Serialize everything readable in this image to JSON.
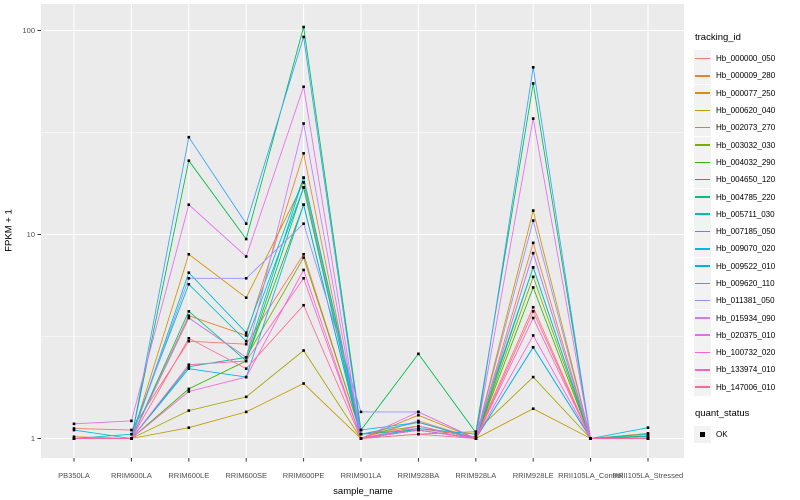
{
  "figure": {
    "background": "#FFFFFF",
    "panel_bg": "#EBEBEB",
    "grid_color": "#FFFFFF",
    "tick_text_color": "#4D4D4D",
    "tick_mark_color": "#333333"
  },
  "axes": {
    "x_title": "sample_name",
    "y_title": "FPKM + 1"
  },
  "legend": {
    "tracking_title": "tracking_id",
    "quant_title": "quant_status",
    "quant_ok_label": "OK"
  },
  "chart_data": {
    "type": "line",
    "title": "",
    "xlabel": "sample_name",
    "ylabel": "FPKM + 1",
    "y_scale": "log10",
    "ylim": [
      0.9,
      135
    ],
    "grid": true,
    "legend_position": "right",
    "point_color": "#000000",
    "yticks": [
      {
        "label": "1",
        "value": 1
      },
      {
        "label": "10",
        "value": 10
      },
      {
        "label": "100",
        "value": 100
      }
    ],
    "y_minor": [
      3.1623,
      31.623
    ],
    "categories": [
      "PB350LA",
      "RRIM600LA",
      "RRIM600LE",
      "RRIM600SE",
      "RRIM600PE",
      "RRIM901LA",
      "RRIM928BA",
      "RRIM928LA",
      "RRIM928LE",
      "RRII105LA_Control",
      "RRII105LA_Stressed"
    ],
    "series": [
      {
        "name": "Hb_000000_050",
        "color": "#F8766D",
        "values": [
          1.12,
          1.1,
          3.0,
          2.9,
          8.0,
          1.05,
          1.12,
          1.02,
          4.4,
          1.0,
          1.02
        ]
      },
      {
        "name": "Hb_000009_280",
        "color": "#EA8331",
        "values": [
          1.0,
          1.0,
          4.0,
          3.2,
          25.0,
          1.0,
          1.22,
          1.0,
          9.1,
          1.0,
          1.06
        ]
      },
      {
        "name": "Hb_000077_250",
        "color": "#D89000",
        "values": [
          1.02,
          1.0,
          8.0,
          4.9,
          18.0,
          1.0,
          1.3,
          1.0,
          13.1,
          1.0,
          1.02
        ]
      },
      {
        "name": "Hb_000620_040",
        "color": "#C09B00",
        "values": [
          1.0,
          1.0,
          1.13,
          1.35,
          1.86,
          1.0,
          1.1,
          1.0,
          1.4,
          1.0,
          1.0
        ]
      },
      {
        "name": "Hb_002073_270",
        "color": "#A3A500",
        "values": [
          1.0,
          1.0,
          1.37,
          1.6,
          2.7,
          1.0,
          1.05,
          1.08,
          2.0,
          1.0,
          1.0
        ]
      },
      {
        "name": "Hb_003032_030",
        "color": "#7CAE00",
        "values": [
          1.0,
          1.0,
          3.9,
          2.5,
          7.7,
          1.05,
          1.15,
          1.0,
          6.2,
          1.0,
          1.0
        ]
      },
      {
        "name": "Hb_004032_290",
        "color": "#39B600",
        "values": [
          1.0,
          1.0,
          1.75,
          2.4,
          14.0,
          1.0,
          1.1,
          1.0,
          5.5,
          1.0,
          1.0
        ]
      },
      {
        "name": "Hb_004650_120",
        "color": "#00BB4E",
        "values": [
          1.0,
          1.0,
          23.0,
          9.5,
          104.0,
          1.1,
          2.6,
          1.07,
          55.0,
          1.0,
          1.03
        ]
      },
      {
        "name": "Hb_004785_220",
        "color": "#00BF7D",
        "values": [
          1.0,
          1.0,
          4.2,
          2.4,
          17.0,
          1.0,
          1.1,
          1.0,
          6.9,
          1.0,
          1.0
        ]
      },
      {
        "name": "Hb_005711_030",
        "color": "#00C1A3",
        "values": [
          1.0,
          1.0,
          2.25,
          2.5,
          19.0,
          1.05,
          1.1,
          1.0,
          2.8,
          1.0,
          1.0
        ]
      },
      {
        "name": "Hb_007185_050",
        "color": "#00BFC4",
        "values": [
          1.0,
          1.05,
          5.7,
          3.0,
          17.0,
          1.0,
          1.12,
          1.05,
          6.9,
          1.0,
          1.05
        ]
      },
      {
        "name": "Hb_009070_020",
        "color": "#00BAE0",
        "values": [
          1.1,
          1.0,
          6.5,
          3.3,
          19.0,
          1.1,
          1.2,
          1.0,
          8.1,
          1.0,
          1.13
        ]
      },
      {
        "name": "Hb_009522_010",
        "color": "#00B0F6",
        "values": [
          1.0,
          1.0,
          2.2,
          2.0,
          14.0,
          1.0,
          1.1,
          1.0,
          2.8,
          1.0,
          1.0
        ]
      },
      {
        "name": "Hb_009620_110",
        "color": "#35A2FF",
        "values": [
          1.0,
          1.0,
          30.0,
          11.3,
          93.0,
          1.05,
          1.2,
          1.0,
          66.0,
          1.0,
          1.02
        ]
      },
      {
        "name": "Hb_011381_050",
        "color": "#9590FF",
        "values": [
          1.0,
          1.0,
          6.1,
          6.1,
          11.3,
          1.35,
          1.35,
          1.0,
          11.7,
          1.0,
          1.0
        ]
      },
      {
        "name": "Hb_015934_090",
        "color": "#C77CFF",
        "values": [
          1.0,
          1.0,
          3.9,
          2.5,
          35.0,
          1.0,
          1.1,
          1.0,
          8.1,
          1.0,
          1.0
        ]
      },
      {
        "name": "Hb_020375_010",
        "color": "#E76BF3",
        "values": [
          1.18,
          1.22,
          14.0,
          7.8,
          53.0,
          1.0,
          1.35,
          1.0,
          37.0,
          1.0,
          1.0
        ]
      },
      {
        "name": "Hb_100732_020",
        "color": "#FA62DB",
        "values": [
          1.0,
          1.0,
          1.7,
          2.0,
          6.7,
          1.0,
          1.1,
          1.0,
          3.2,
          1.0,
          1.0
        ]
      },
      {
        "name": "Hb_133974_010",
        "color": "#FF62BC",
        "values": [
          1.0,
          1.0,
          2.3,
          2.4,
          6.1,
          1.0,
          1.15,
          1.0,
          3.9,
          1.0,
          1.0
        ]
      },
      {
        "name": "Hb_147006_010",
        "color": "#FF6A98",
        "values": [
          1.0,
          1.0,
          3.1,
          2.2,
          4.5,
          1.0,
          1.05,
          1.0,
          4.2,
          1.0,
          1.0
        ]
      }
    ],
    "quant_status_series": {
      "label": "OK",
      "marker": "filled-square",
      "color": "#000000"
    }
  }
}
